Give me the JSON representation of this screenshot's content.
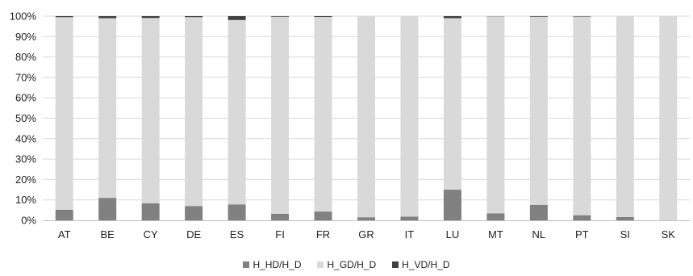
{
  "chart_data": {
    "type": "bar",
    "stacked": true,
    "title": "",
    "xlabel": "",
    "ylabel": "",
    "ylim": [
      0,
      100
    ],
    "y_ticks": [
      "0%",
      "10%",
      "20%",
      "30%",
      "40%",
      "50%",
      "60%",
      "70%",
      "80%",
      "90%",
      "100%"
    ],
    "grid": true,
    "legend_position": "bottom",
    "categories": [
      "AT",
      "BE",
      "CY",
      "DE",
      "ES",
      "FI",
      "FR",
      "GR",
      "IT",
      "LU",
      "MT",
      "NL",
      "PT",
      "SI",
      "SK"
    ],
    "series": [
      {
        "name": "H_HD/H_D",
        "color": "#808080",
        "values": [
          5.2,
          11.0,
          8.3,
          7.0,
          7.8,
          3.2,
          4.3,
          1.5,
          1.8,
          15.0,
          3.4,
          7.6,
          2.5,
          1.6,
          0.0
        ]
      },
      {
        "name": "H_GD/H_D",
        "color": "#d9d9d9",
        "values": [
          94.3,
          88.0,
          90.8,
          92.5,
          90.3,
          96.5,
          95.3,
          98.5,
          98.2,
          84.0,
          96.5,
          92.1,
          97.3,
          98.4,
          100.0
        ]
      },
      {
        "name": "H_VD/H_D",
        "color": "#404040",
        "values": [
          0.5,
          1.0,
          0.9,
          0.5,
          1.9,
          0.3,
          0.4,
          0.0,
          0.0,
          1.0,
          0.1,
          0.3,
          0.2,
          0.0,
          0.0
        ]
      }
    ]
  }
}
